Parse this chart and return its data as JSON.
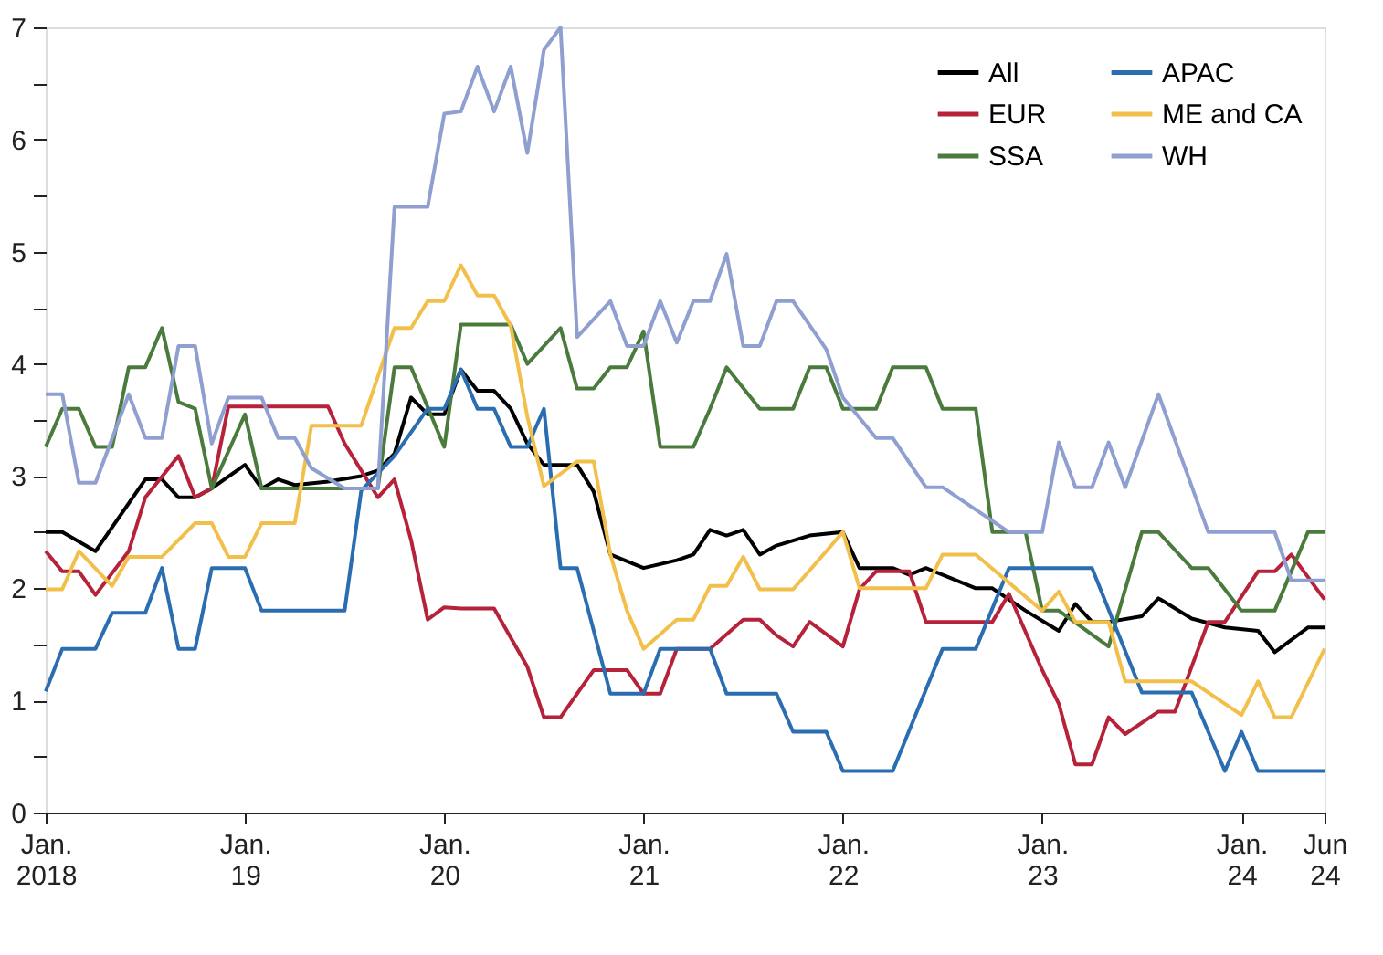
{
  "chart_data": {
    "type": "line",
    "xlim": [
      "2018-01",
      "2024-06"
    ],
    "xticks": [
      {
        "value": "2018-01",
        "label": "Jan. 2018"
      },
      {
        "value": "2019-01",
        "label": "Jan. 19"
      },
      {
        "value": "2020-01",
        "label": "Jan. 20"
      },
      {
        "value": "2021-01",
        "label": "Jan. 21"
      },
      {
        "value": "2022-01",
        "label": "Jan. 22"
      },
      {
        "value": "2023-01",
        "label": "Jan. 23"
      },
      {
        "value": "2024-01",
        "label": "Jan. 24"
      },
      {
        "value": "2024-06",
        "label": "Jun 24"
      }
    ],
    "ylim": [
      0,
      7
    ],
    "yticks": [
      0,
      {
        "value": 0.5,
        "label": null
      },
      1,
      {
        "value": 1.5,
        "label": null
      },
      2,
      {
        "value": 2.5,
        "label": null
      },
      3,
      {
        "value": 3.5,
        "label": null
      },
      4,
      {
        "value": 4.5,
        "label": null
      },
      5,
      {
        "value": 5.5,
        "label": null
      },
      6,
      {
        "value": 6.5,
        "label": null
      },
      7
    ],
    "grid": false,
    "legend": "top right",
    "line_style": "solid",
    "marker": "none",
    "series": [
      {
        "name": "All",
        "color": "#000000",
        "x": [
          "2018-01",
          "2018-02",
          "2018-04",
          "2018-07",
          "2018-08",
          "2018-09",
          "2018-10",
          "2018-11",
          "2019-01",
          "2019-02",
          "2019-03",
          "2019-04",
          "2019-06",
          "2019-08",
          "2019-09",
          "2019-10",
          "2019-11",
          "2019-12",
          "2020-01",
          "2020-02",
          "2020-03",
          "2020-04",
          "2020-05",
          "2020-06",
          "2020-07",
          "2020-09",
          "2020-10",
          "2020-11",
          "2021-01",
          "2021-03",
          "2021-04",
          "2021-05",
          "2021-06",
          "2021-07",
          "2021-08",
          "2021-09",
          "2021-11",
          "2022-01",
          "2022-02",
          "2022-04",
          "2022-05",
          "2022-06",
          "2022-09",
          "2022-10",
          "2022-12",
          "2023-02",
          "2023-03",
          "2023-04",
          "2023-05",
          "2023-07",
          "2023-08",
          "2023-10",
          "2023-12",
          "2024-02",
          "2024-03",
          "2024-05",
          "2024-06"
        ],
        "values": [
          2.5,
          2.5,
          2.33,
          2.97,
          2.97,
          2.81,
          2.81,
          2.89,
          3.1,
          2.89,
          2.97,
          2.92,
          2.95,
          3.0,
          3.05,
          3.2,
          3.7,
          3.55,
          3.55,
          3.95,
          3.76,
          3.76,
          3.6,
          3.29,
          3.1,
          3.1,
          2.86,
          2.3,
          2.18,
          2.25,
          2.3,
          2.52,
          2.47,
          2.52,
          2.3,
          2.38,
          2.47,
          2.5,
          2.18,
          2.18,
          2.12,
          2.18,
          2.0,
          2.0,
          1.8,
          1.62,
          1.86,
          1.7,
          1.7,
          1.75,
          1.91,
          1.73,
          1.65,
          1.62,
          1.43,
          1.65,
          1.65
        ]
      },
      {
        "name": "EUR",
        "color": "#b5223a",
        "x": [
          "2018-01",
          "2018-02",
          "2018-03",
          "2018-04",
          "2018-06",
          "2018-07",
          "2018-09",
          "2018-10",
          "2018-11",
          "2018-12",
          "2019-06",
          "2019-07",
          "2019-09",
          "2019-10",
          "2019-11",
          "2019-12",
          "2020-01",
          "2020-02",
          "2020-04",
          "2020-06",
          "2020-07",
          "2020-08",
          "2020-10",
          "2020-12",
          "2021-01",
          "2021-02",
          "2021-03",
          "2021-05",
          "2021-07",
          "2021-08",
          "2021-09",
          "2021-10",
          "2021-11",
          "2022-01",
          "2022-02",
          "2022-03",
          "2022-05",
          "2022-06",
          "2022-08",
          "2022-10",
          "2022-11",
          "2023-01",
          "2023-02",
          "2023-03",
          "2023-04",
          "2023-05",
          "2023-06",
          "2023-08",
          "2023-09",
          "2023-11",
          "2023-12",
          "2024-02",
          "2024-03",
          "2024-04",
          "2024-06"
        ],
        "values": [
          2.33,
          2.15,
          2.15,
          1.94,
          2.33,
          2.81,
          3.18,
          2.81,
          2.89,
          3.62,
          3.62,
          3.29,
          2.81,
          2.97,
          2.43,
          1.72,
          1.83,
          1.82,
          1.82,
          1.3,
          0.85,
          0.85,
          1.27,
          1.27,
          1.06,
          1.06,
          1.46,
          1.46,
          1.72,
          1.72,
          1.58,
          1.48,
          1.7,
          1.48,
          1.99,
          2.15,
          2.15,
          1.7,
          1.7,
          1.7,
          1.95,
          1.27,
          0.97,
          0.43,
          0.43,
          0.85,
          0.7,
          0.9,
          0.9,
          1.7,
          1.7,
          2.15,
          2.15,
          2.3,
          1.9
        ]
      },
      {
        "name": "SSA",
        "color": "#4a7a3c",
        "x": [
          "2018-01",
          "2018-02",
          "2018-03",
          "2018-04",
          "2018-05",
          "2018-06",
          "2018-07",
          "2018-08",
          "2018-09",
          "2018-10",
          "2018-11",
          "2019-01",
          "2019-02",
          "2019-09",
          "2019-10",
          "2019-11",
          "2020-01",
          "2020-02",
          "2020-04",
          "2020-05",
          "2020-06",
          "2020-08",
          "2020-09",
          "2020-10",
          "2020-11",
          "2020-12",
          "2021-01",
          "2021-02",
          "2021-04",
          "2021-05",
          "2021-06",
          "2021-08",
          "2021-10",
          "2021-11",
          "2021-12",
          "2022-01",
          "2022-03",
          "2022-04",
          "2022-06",
          "2022-07",
          "2022-09",
          "2022-10",
          "2022-12",
          "2023-01",
          "2023-02",
          "2023-05",
          "2023-07",
          "2023-08",
          "2023-10",
          "2023-11",
          "2024-01",
          "2024-03",
          "2024-05",
          "2024-06"
        ],
        "values": [
          3.26,
          3.6,
          3.6,
          3.26,
          3.26,
          3.97,
          3.97,
          4.32,
          3.66,
          3.6,
          2.89,
          3.55,
          2.89,
          2.89,
          3.97,
          3.97,
          3.26,
          4.35,
          4.35,
          4.35,
          4.0,
          4.32,
          3.78,
          3.78,
          3.97,
          3.97,
          4.29,
          3.26,
          3.26,
          3.6,
          3.97,
          3.6,
          3.6,
          3.97,
          3.97,
          3.6,
          3.6,
          3.97,
          3.97,
          3.6,
          3.6,
          2.5,
          2.5,
          1.8,
          1.8,
          1.48,
          2.5,
          2.5,
          2.18,
          2.18,
          1.8,
          1.8,
          2.5,
          2.5
        ]
      },
      {
        "name": "APAC",
        "color": "#2a6db0",
        "x": [
          "2018-01",
          "2018-02",
          "2018-04",
          "2018-05",
          "2018-07",
          "2018-08",
          "2018-09",
          "2018-10",
          "2018-11",
          "2019-01",
          "2019-02",
          "2019-07",
          "2019-08",
          "2019-10",
          "2019-12",
          "2020-01",
          "2020-02",
          "2020-03",
          "2020-04",
          "2020-05",
          "2020-06",
          "2020-07",
          "2020-08",
          "2020-09",
          "2020-11",
          "2021-01",
          "2021-02",
          "2021-03",
          "2021-05",
          "2021-06",
          "2021-07",
          "2021-09",
          "2021-10",
          "2021-12",
          "2022-01",
          "2022-02",
          "2022-04",
          "2022-07",
          "2022-09",
          "2022-11",
          "2023-04",
          "2023-07",
          "2023-10",
          "2023-12",
          "2024-01",
          "2024-02",
          "2024-06"
        ],
        "values": [
          1.08,
          1.46,
          1.46,
          1.78,
          1.78,
          2.18,
          1.46,
          1.46,
          2.18,
          2.18,
          1.8,
          1.8,
          2.87,
          3.18,
          3.6,
          3.6,
          3.95,
          3.6,
          3.6,
          3.26,
          3.26,
          3.6,
          2.18,
          2.18,
          1.06,
          1.06,
          1.46,
          1.46,
          1.46,
          1.06,
          1.06,
          1.06,
          0.72,
          0.72,
          0.37,
          0.37,
          0.37,
          1.46,
          1.46,
          2.18,
          2.18,
          1.07,
          1.07,
          0.37,
          0.72,
          0.37,
          0.37
        ]
      },
      {
        "name": "ME and CA",
        "color": "#f2c04a",
        "x": [
          "2018-01",
          "2018-02",
          "2018-03",
          "2018-05",
          "2018-06",
          "2018-08",
          "2018-10",
          "2018-11",
          "2018-12",
          "2019-01",
          "2019-02",
          "2019-04",
          "2019-05",
          "2019-08",
          "2019-10",
          "2019-11",
          "2019-12",
          "2020-01",
          "2020-02",
          "2020-03",
          "2020-04",
          "2020-05",
          "2020-06",
          "2020-07",
          "2020-09",
          "2020-10",
          "2020-11",
          "2020-12",
          "2021-01",
          "2021-03",
          "2021-04",
          "2021-05",
          "2021-06",
          "2021-07",
          "2021-08",
          "2021-10",
          "2022-01",
          "2022-02",
          "2022-06",
          "2022-07",
          "2022-09",
          "2023-01",
          "2023-02",
          "2023-03",
          "2023-05",
          "2023-06",
          "2023-10",
          "2024-01",
          "2024-02",
          "2024-03",
          "2024-04",
          "2024-06"
        ],
        "values": [
          1.99,
          1.99,
          2.33,
          2.02,
          2.28,
          2.28,
          2.58,
          2.58,
          2.28,
          2.28,
          2.58,
          2.58,
          3.45,
          3.45,
          4.32,
          4.32,
          4.56,
          4.56,
          4.88,
          4.61,
          4.61,
          4.34,
          3.53,
          2.91,
          3.13,
          3.13,
          2.3,
          1.8,
          1.46,
          1.72,
          1.72,
          2.02,
          2.02,
          2.28,
          1.99,
          1.99,
          2.5,
          2.0,
          2.0,
          2.3,
          2.3,
          1.8,
          1.97,
          1.7,
          1.7,
          1.17,
          1.17,
          0.87,
          1.17,
          0.85,
          0.85,
          1.46
        ]
      },
      {
        "name": "WH",
        "color": "#8e9fd0",
        "x": [
          "2018-01",
          "2018-02",
          "2018-03",
          "2018-04",
          "2018-06",
          "2018-07",
          "2018-08",
          "2018-09",
          "2018-10",
          "2018-11",
          "2018-12",
          "2019-02",
          "2019-03",
          "2019-04",
          "2019-05",
          "2019-07",
          "2019-09",
          "2019-10",
          "2019-12",
          "2020-01",
          "2020-02",
          "2020-03",
          "2020-04",
          "2020-05",
          "2020-06",
          "2020-07",
          "2020-08",
          "2020-09",
          "2020-11",
          "2020-12",
          "2021-01",
          "2021-02",
          "2021-03",
          "2021-04",
          "2021-05",
          "2021-06",
          "2021-07",
          "2021-08",
          "2021-09",
          "2021-10",
          "2021-12",
          "2022-01",
          "2022-03",
          "2022-04",
          "2022-06",
          "2022-07",
          "2022-11",
          "2023-01",
          "2023-02",
          "2023-03",
          "2023-04",
          "2023-05",
          "2023-06",
          "2023-08",
          "2023-11",
          "2024-03",
          "2024-04",
          "2024-06"
        ],
        "values": [
          3.73,
          3.73,
          2.94,
          2.94,
          3.73,
          3.34,
          3.34,
          4.16,
          4.16,
          3.29,
          3.7,
          3.7,
          3.34,
          3.34,
          3.07,
          2.89,
          2.89,
          5.4,
          5.4,
          6.23,
          6.25,
          6.65,
          6.25,
          6.65,
          5.88,
          6.8,
          7.0,
          4.24,
          4.56,
          4.16,
          4.16,
          4.56,
          4.19,
          4.56,
          4.56,
          4.98,
          4.16,
          4.16,
          4.56,
          4.56,
          4.13,
          3.7,
          3.34,
          3.34,
          2.9,
          2.9,
          2.5,
          2.5,
          3.3,
          2.9,
          2.9,
          3.3,
          2.9,
          3.73,
          2.5,
          2.5,
          2.07,
          2.07
        ]
      }
    ]
  }
}
